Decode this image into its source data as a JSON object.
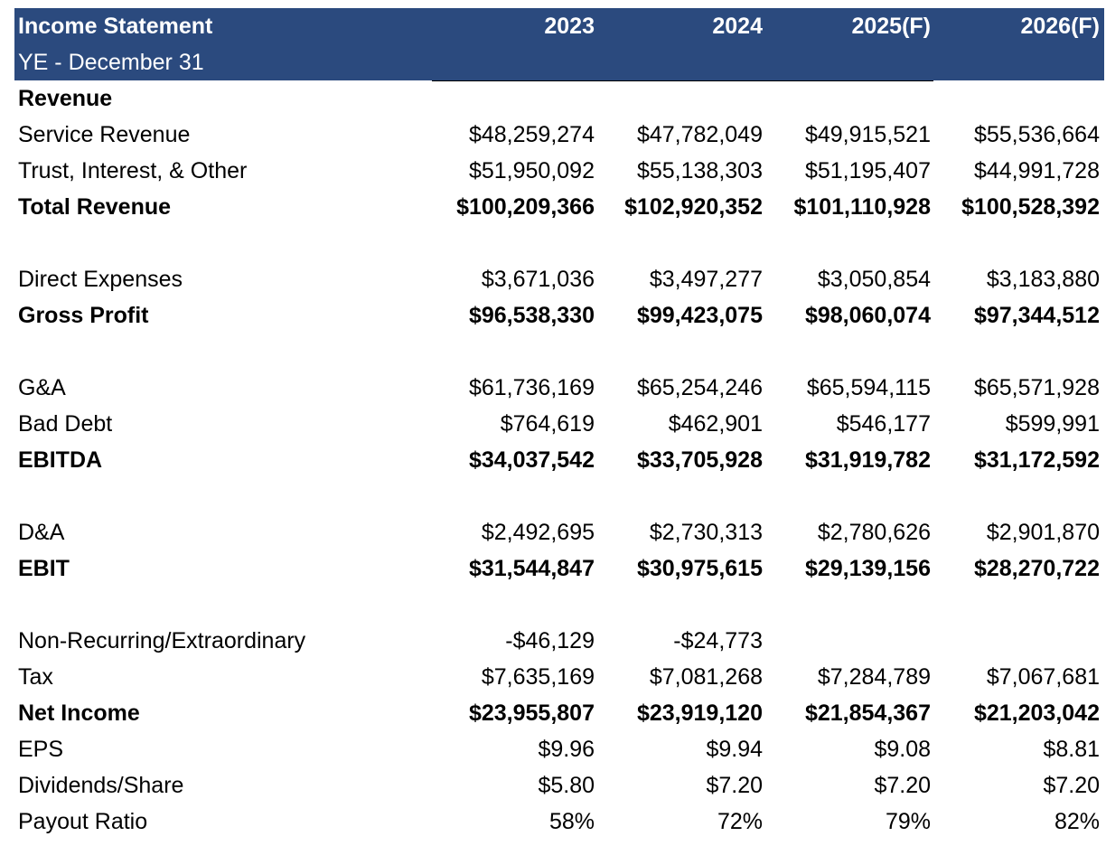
{
  "header": {
    "title": "Income Statement",
    "subtitle": "YE - December 31",
    "years": [
      "2023",
      "2024",
      "2025(F)",
      "2026(F)"
    ]
  },
  "colors": {
    "header_bg": "#2B4A7E",
    "header_text": "#ffffff"
  },
  "rows": [
    {
      "label": "Revenue",
      "bold": true,
      "values": [
        "",
        "",
        "",
        ""
      ]
    },
    {
      "label": "Service Revenue",
      "bold": false,
      "values": [
        "$48,259,274",
        "$47,782,049",
        "$49,915,521",
        "$55,536,664"
      ]
    },
    {
      "label": "Trust, Interest, & Other",
      "bold": false,
      "values": [
        "$51,950,092",
        "$55,138,303",
        "$51,195,407",
        "$44,991,728"
      ]
    },
    {
      "label": "Total Revenue",
      "bold": true,
      "values": [
        "$100,209,366",
        "$102,920,352",
        "$101,110,928",
        "$100,528,392"
      ]
    },
    {
      "label": "Direct Expenses",
      "bold": false,
      "values": [
        "$3,671,036",
        "$3,497,277",
        "$3,050,854",
        "$3,183,880"
      ]
    },
    {
      "label": "Gross Profit",
      "bold": true,
      "values": [
        "$96,538,330",
        "$99,423,075",
        "$98,060,074",
        "$97,344,512"
      ]
    },
    {
      "label": "G&A",
      "bold": false,
      "values": [
        "$61,736,169",
        "$65,254,246",
        "$65,594,115",
        "$65,571,928"
      ]
    },
    {
      "label": "Bad Debt",
      "bold": false,
      "values": [
        "$764,619",
        "$462,901",
        "$546,177",
        "$599,991"
      ]
    },
    {
      "label": "EBITDA",
      "bold": true,
      "values": [
        "$34,037,542",
        "$33,705,928",
        "$31,919,782",
        "$31,172,592"
      ]
    },
    {
      "label": "D&A",
      "bold": false,
      "values": [
        "$2,492,695",
        "$2,730,313",
        "$2,780,626",
        "$2,901,870"
      ]
    },
    {
      "label": "EBIT",
      "bold": true,
      "values": [
        "$31,544,847",
        "$30,975,615",
        "$29,139,156",
        "$28,270,722"
      ]
    },
    {
      "label": "Non-Recurring/Extraordinary",
      "bold": false,
      "values": [
        "-$46,129",
        "-$24,773",
        "",
        ""
      ]
    },
    {
      "label": "Tax",
      "bold": false,
      "values": [
        "$7,635,169",
        "$7,081,268",
        "$7,284,789",
        "$7,067,681"
      ]
    },
    {
      "label": "Net Income",
      "bold": true,
      "values": [
        "$23,955,807",
        "$23,919,120",
        "$21,854,367",
        "$21,203,042"
      ]
    },
    {
      "label": "EPS",
      "bold": false,
      "values": [
        "$9.96",
        "$9.94",
        "$9.08",
        "$8.81"
      ]
    },
    {
      "label": "Dividends/Share",
      "bold": false,
      "values": [
        "$5.80",
        "$7.20",
        "$7.20",
        "$7.20"
      ]
    },
    {
      "label": "Payout Ratio",
      "bold": false,
      "values": [
        "58%",
        "72%",
        "79%",
        "82%"
      ]
    }
  ]
}
